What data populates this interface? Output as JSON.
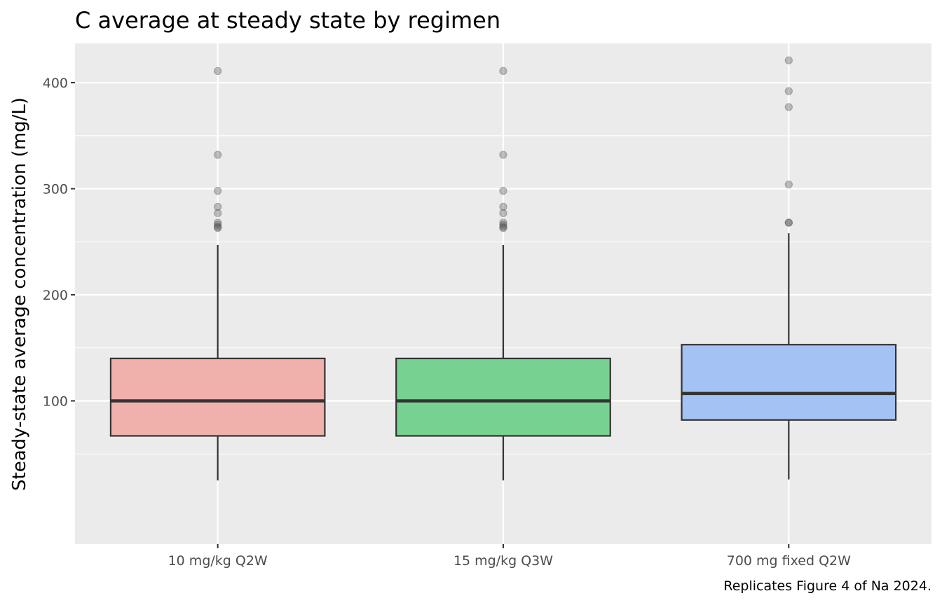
{
  "chart_data": {
    "type": "box",
    "title": "C average at steady state by regimen",
    "xlabel": "",
    "ylabel": "Steady-state average concentration (mg/L)",
    "caption": "Replicates Figure 4 of Na 2024.",
    "ylim": [
      -35,
      437
    ],
    "yticks": [
      100,
      200,
      300,
      400
    ],
    "grid": true,
    "legend": "none",
    "panel_color": "#ebebeb",
    "grid_color": "#ffffff",
    "categories": [
      "10 mg/kg Q2W",
      "15 mg/kg Q3W",
      "700 mg fixed Q2W"
    ],
    "series": [
      {
        "color": "#f0b1ad",
        "whisker_low": 25,
        "q1": 67,
        "median": 100,
        "q3": 140,
        "whisker_high": 247,
        "outliers": [
          411,
          332,
          298,
          283,
          277,
          268,
          266,
          264,
          263
        ]
      },
      {
        "color": "#77d190",
        "whisker_low": 25,
        "q1": 67,
        "median": 100,
        "q3": 140,
        "whisker_high": 247,
        "outliers": [
          411,
          332,
          298,
          283,
          277,
          268,
          266,
          264,
          263
        ]
      },
      {
        "color": "#a4c3f4",
        "whisker_low": 26,
        "q1": 82,
        "median": 107,
        "q3": 153,
        "whisker_high": 258,
        "outliers": [
          421,
          392,
          377,
          304,
          268,
          268
        ]
      }
    ]
  }
}
